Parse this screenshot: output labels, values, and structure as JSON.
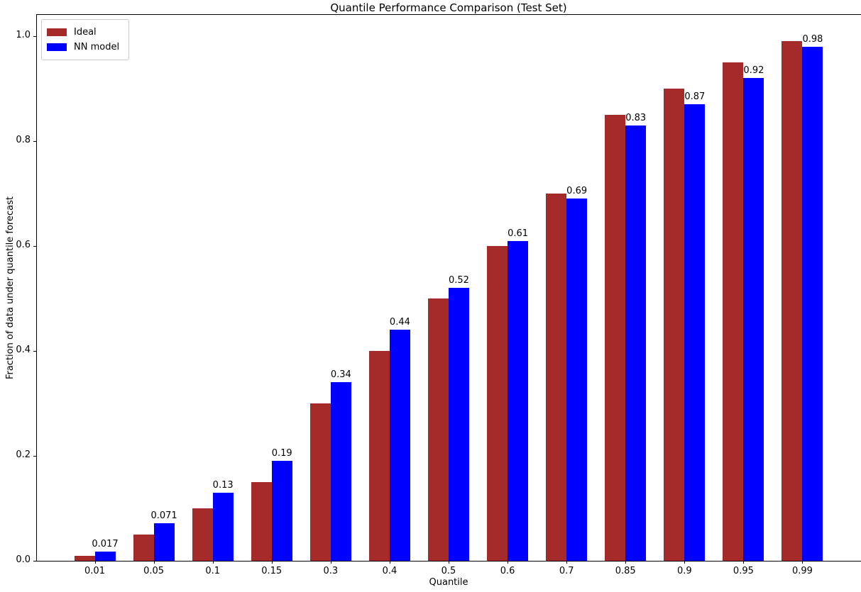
{
  "chart_data": {
    "type": "bar",
    "title": "Quantile Performance Comparison (Test Set)",
    "xlabel": "Quantile",
    "ylabel": "Fraction of data under quantile forecast",
    "categories": [
      "0.01",
      "0.05",
      "0.1",
      "0.15",
      "0.3",
      "0.4",
      "0.5",
      "0.6",
      "0.7",
      "0.85",
      "0.9",
      "0.95",
      "0.99"
    ],
    "series": [
      {
        "name": "Ideal",
        "color": "#A52A2A",
        "values": [
          0.01,
          0.05,
          0.1,
          0.15,
          0.3,
          0.4,
          0.5,
          0.6,
          0.7,
          0.85,
          0.9,
          0.95,
          0.99
        ]
      },
      {
        "name": "NN model",
        "color": "#0000FF",
        "values": [
          0.017,
          0.071,
          0.13,
          0.19,
          0.34,
          0.44,
          0.52,
          0.61,
          0.69,
          0.83,
          0.87,
          0.92,
          0.98
        ]
      }
    ],
    "bar_labels": [
      "0.017",
      "0.071",
      "0.13",
      "0.19",
      "0.34",
      "0.44",
      "0.52",
      "0.61",
      "0.69",
      "0.83",
      "0.87",
      "0.92",
      "0.98"
    ],
    "bar_labels_on_series": "NN model",
    "yticks": [
      "0.0",
      "0.2",
      "0.4",
      "0.6",
      "0.8",
      "1.0"
    ],
    "ylim": [
      0.0,
      1.043
    ],
    "grid": false,
    "legend_position": "upper left",
    "background_color": "#ffffff",
    "text_color": "#000000"
  }
}
